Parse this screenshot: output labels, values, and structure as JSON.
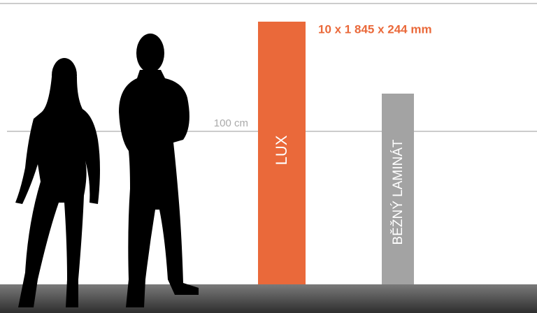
{
  "dimensions": {
    "label": "10 x 1 845 x 244 mm"
  },
  "height_marker": {
    "label": "100 cm"
  },
  "panels": [
    {
      "label": "LUX"
    },
    {
      "label": "BĚŽNÝ LAMINÁT"
    }
  ]
}
